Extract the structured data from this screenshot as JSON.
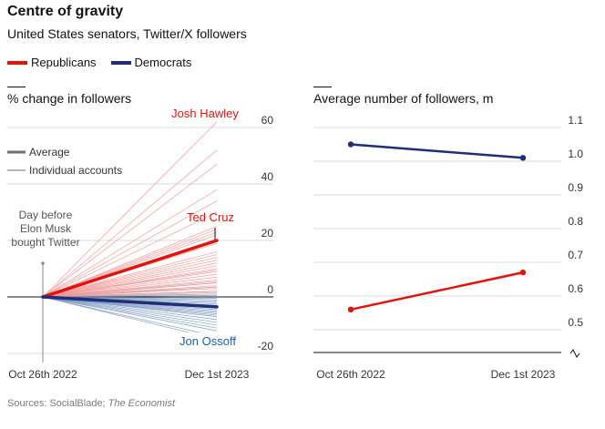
{
  "title": "Centre of gravity",
  "subtitle": "United States senators, Twitter/X followers",
  "legend": [
    {
      "label": "Republicans",
      "color": "#e3120b"
    },
    {
      "label": "Democrats",
      "color": "#1f2e7a"
    }
  ],
  "footer": {
    "sources": "Sources: SocialBlade; ",
    "publication": "The Economist"
  },
  "chart_data": [
    {
      "type": "line",
      "title": "% change in followers",
      "x": [
        "Oct 26th 2022",
        "Dec 1st 2023"
      ],
      "ylim": [
        -20,
        60
      ],
      "yticks": [
        60,
        40,
        20,
        0,
        -20
      ],
      "key": {
        "average": "Average",
        "individual": "Individual accounts"
      },
      "event_label": [
        "Day before",
        "Elon Musk",
        "bought Twitter"
      ],
      "colors": {
        "rep_average": "#e3120b",
        "rep_individual": "#f19a98",
        "dem_average": "#1f2e7a",
        "dem_individual": "#6e8fbd"
      },
      "averages": [
        {
          "party": "Republicans",
          "values": [
            0,
            20
          ]
        },
        {
          "party": "Democrats",
          "values": [
            0,
            -3.5
          ]
        }
      ],
      "individual_end_values": {
        "Republicans": [
          62,
          52,
          47,
          38,
          34,
          30,
          25,
          24,
          23,
          22,
          19,
          16,
          15,
          14,
          13,
          12,
          11,
          10,
          9.5,
          9,
          8,
          7,
          6,
          5.5,
          5,
          4,
          3.5,
          3,
          2,
          1.5
        ],
        "Democrats": [
          5,
          3.5,
          2,
          1,
          0.5,
          -0.5,
          -1,
          -1.5,
          -2,
          -2.5,
          -3,
          -3.5,
          -4,
          -4.5,
          -5,
          -5.5,
          -6,
          -6.5,
          -7,
          -8,
          -9,
          -10,
          -11,
          -12,
          -14,
          -15
        ]
      },
      "annotations": [
        {
          "label": "Josh Hawley",
          "party": "Republicans",
          "value": 62
        },
        {
          "label": "Ted Cruz",
          "party": "Republicans",
          "value": 24
        },
        {
          "label": "Jon Ossoff",
          "party": "Democrats",
          "value": -10
        }
      ]
    },
    {
      "type": "line",
      "title": "Average number of followers, m",
      "x": [
        "Oct 26th 2022",
        "Dec 1st 2023"
      ],
      "ylim": [
        0.5,
        1.1
      ],
      "yticks": [
        1.1,
        1.0,
        0.9,
        0.8,
        0.7,
        0.6,
        0.5
      ],
      "ytick_labels": [
        "1.1",
        "1.0",
        "0.9",
        "0.8",
        "0.7",
        "0.6",
        "0.5"
      ],
      "axis_break": true,
      "series": [
        {
          "party": "Democrats",
          "color": "#1f2e7a",
          "values": [
            1.05,
            1.01
          ]
        },
        {
          "party": "Republicans",
          "color": "#e3120b",
          "values": [
            0.56,
            0.67
          ]
        }
      ]
    }
  ]
}
